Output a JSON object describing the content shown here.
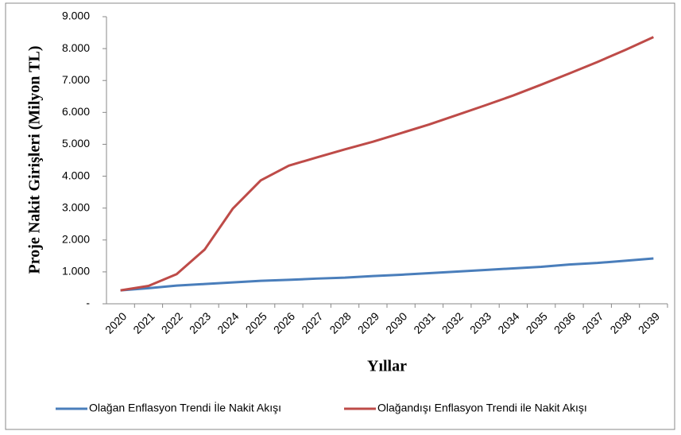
{
  "chart_data": {
    "type": "line",
    "x_label": "Yıllar",
    "y_label": "Proje Nakit Girişleri (Milyon TL)",
    "categories": [
      "2020",
      "2021",
      "2022",
      "2023",
      "2024",
      "2025",
      "2026",
      "2027",
      "2028",
      "2029",
      "2030",
      "2031",
      "2032",
      "2033",
      "2034",
      "2035",
      "2036",
      "2037",
      "2038",
      "2039"
    ],
    "series": [
      {
        "name": "Olağan Enflasyon Trendi İle Nakit Akışı",
        "color": "#4a7ebb",
        "values": [
          420,
          490,
          570,
          620,
          670,
          720,
          750,
          790,
          820,
          870,
          910,
          960,
          1010,
          1060,
          1110,
          1160,
          1230,
          1280,
          1350,
          1420
        ]
      },
      {
        "name": "Olağandışı Enflasyon Trendi ile Nakit Akışı",
        "color": "#be4b48",
        "values": [
          420,
          560,
          930,
          1700,
          2980,
          3870,
          4330,
          4590,
          4840,
          5080,
          5350,
          5620,
          5920,
          6220,
          6530,
          6870,
          7220,
          7580,
          7960,
          8360
        ]
      }
    ],
    "ylim": [
      0,
      9000
    ],
    "yticks": [
      {
        "value": 0,
        "label": "-"
      },
      {
        "value": 1000,
        "label": "1.000"
      },
      {
        "value": 2000,
        "label": "2.000"
      },
      {
        "value": 3000,
        "label": "3.000"
      },
      {
        "value": 4000,
        "label": "4.000"
      },
      {
        "value": 5000,
        "label": "5.000"
      },
      {
        "value": 6000,
        "label": "6.000"
      },
      {
        "value": 7000,
        "label": "7.000"
      },
      {
        "value": 8000,
        "label": "8.000"
      },
      {
        "value": 9000,
        "label": "9.000"
      }
    ],
    "grid": false,
    "legend": "bottom"
  }
}
